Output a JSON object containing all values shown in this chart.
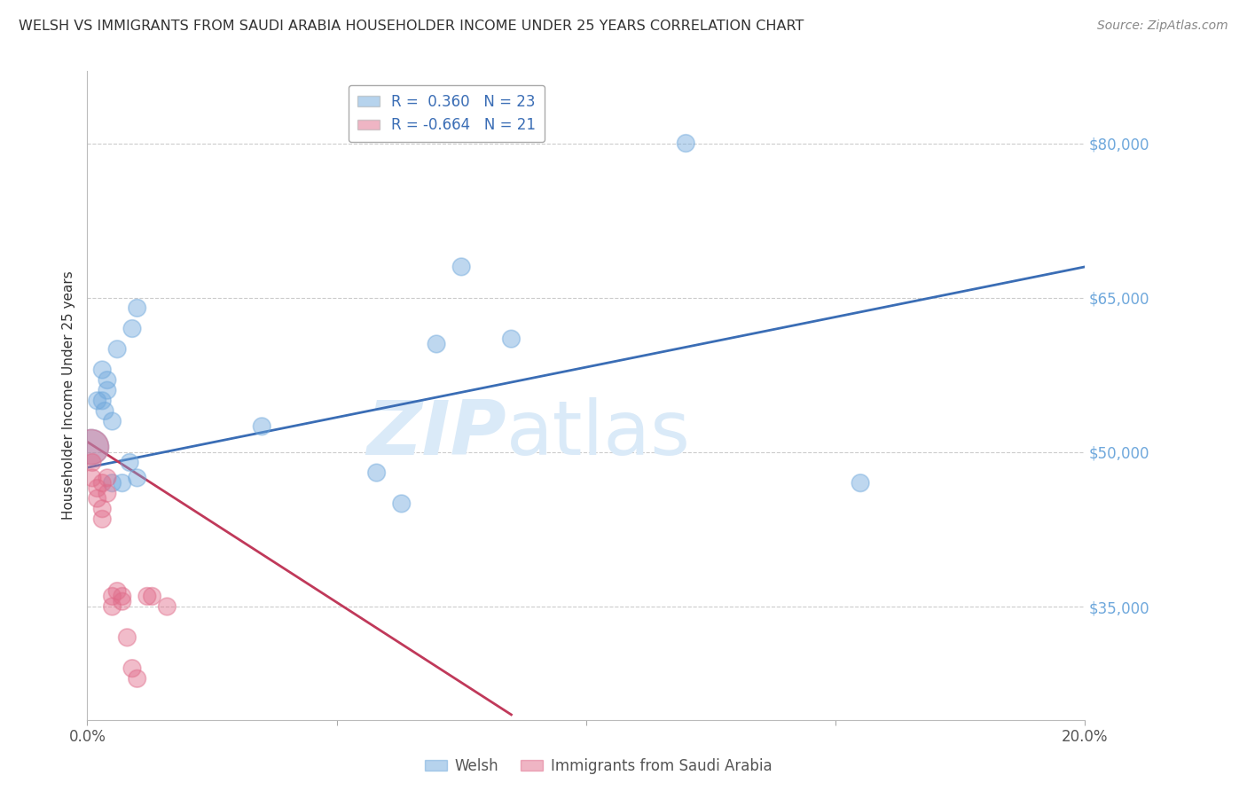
{
  "title": "WELSH VS IMMIGRANTS FROM SAUDI ARABIA HOUSEHOLDER INCOME UNDER 25 YEARS CORRELATION CHART",
  "source": "Source: ZipAtlas.com",
  "ylabel": "Householder Income Under 25 years",
  "y_tick_labels": [
    "$35,000",
    "$50,000",
    "$65,000",
    "$80,000"
  ],
  "y_tick_values": [
    35000,
    50000,
    65000,
    80000
  ],
  "ylim": [
    24000,
    87000
  ],
  "xlim": [
    0.0,
    0.2
  ],
  "legend_blue_r": "R =  0.360",
  "legend_blue_n": "N = 23",
  "legend_pink_r": "R = -0.664",
  "legend_pink_n": "N = 21",
  "label_blue": "Welsh",
  "label_pink": "Immigrants from Saudi Arabia",
  "blue_color": "#6fa8dc",
  "pink_color": "#e06c8a",
  "trendline_blue_color": "#3a6db5",
  "trendline_pink_color": "#c0395a",
  "watermark_color": "#daeaf8",
  "blue_scatter": {
    "x": [
      0.0008,
      0.002,
      0.003,
      0.003,
      0.0035,
      0.004,
      0.004,
      0.005,
      0.005,
      0.006,
      0.007,
      0.0085,
      0.009,
      0.01,
      0.01,
      0.035,
      0.058,
      0.063,
      0.07,
      0.075,
      0.085,
      0.12,
      0.155
    ],
    "y": [
      50500,
      55000,
      58000,
      55000,
      54000,
      56000,
      57000,
      53000,
      47000,
      60000,
      47000,
      49000,
      62000,
      64000,
      47500,
      52500,
      48000,
      45000,
      60500,
      68000,
      61000,
      80000,
      47000
    ],
    "sizes": [
      800,
      200,
      200,
      200,
      200,
      200,
      200,
      200,
      200,
      200,
      200,
      200,
      200,
      200,
      200,
      200,
      200,
      200,
      200,
      200,
      200,
      200,
      200
    ]
  },
  "pink_scatter": {
    "x": [
      0.0008,
      0.001,
      0.001,
      0.002,
      0.002,
      0.003,
      0.003,
      0.003,
      0.004,
      0.004,
      0.005,
      0.005,
      0.006,
      0.007,
      0.007,
      0.008,
      0.009,
      0.01,
      0.012,
      0.013,
      0.016
    ],
    "y": [
      50500,
      49000,
      47500,
      46500,
      45500,
      44500,
      43500,
      47000,
      47500,
      46000,
      36000,
      35000,
      36500,
      36000,
      35500,
      32000,
      29000,
      28000,
      36000,
      36000,
      35000
    ],
    "sizes": [
      800,
      200,
      200,
      200,
      200,
      200,
      200,
      200,
      200,
      200,
      200,
      200,
      200,
      200,
      200,
      200,
      200,
      200,
      200,
      200,
      200
    ]
  },
  "blue_trendline": {
    "x": [
      0.0,
      0.2
    ],
    "y": [
      48500,
      68000
    ]
  },
  "pink_trendline": {
    "x": [
      0.0,
      0.085
    ],
    "y": [
      51000,
      24500
    ]
  }
}
